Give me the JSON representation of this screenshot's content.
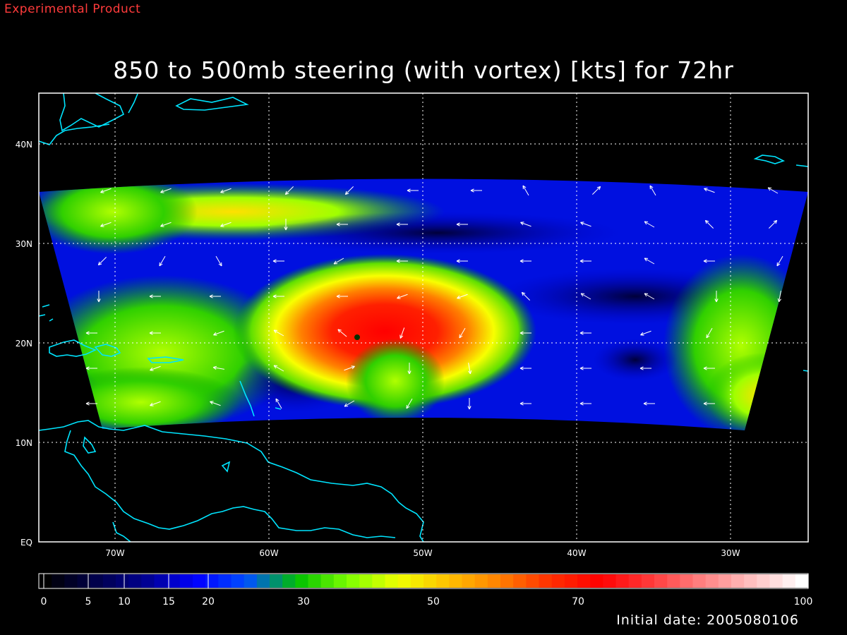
{
  "header": {
    "product_tag": "Experimental Product",
    "title": "850 to 500mb steering (with vortex) [kts] for 72hr"
  },
  "footer": {
    "initial_date": "Initial date: 2005080106"
  },
  "map": {
    "lat_labels": [
      "EQ",
      "10N",
      "20N",
      "30N",
      "40N"
    ],
    "lon_labels": [
      "70W",
      "60W",
      "50W",
      "40W",
      "30W"
    ],
    "extent": {
      "lon_min": -75,
      "lon_max": -25,
      "lat_min": 0,
      "lat_max": 45
    },
    "coastline_color": "#00e5ff",
    "grid": "dotted"
  },
  "colorbar": {
    "tick_labels": [
      "0",
      "5",
      "10",
      "15",
      "20",
      "30",
      "50",
      "70",
      "100"
    ],
    "colors": [
      "#000000",
      "#00004a",
      "#000090",
      "#0000ff",
      "#0050ff",
      "#00c000",
      "#7cff00",
      "#f0ff00",
      "#ffc000",
      "#ff8000",
      "#ff3000",
      "#ff0000",
      "#ff3a3a",
      "#ff8080",
      "#ffc0c0",
      "#ffffff"
    ]
  }
}
